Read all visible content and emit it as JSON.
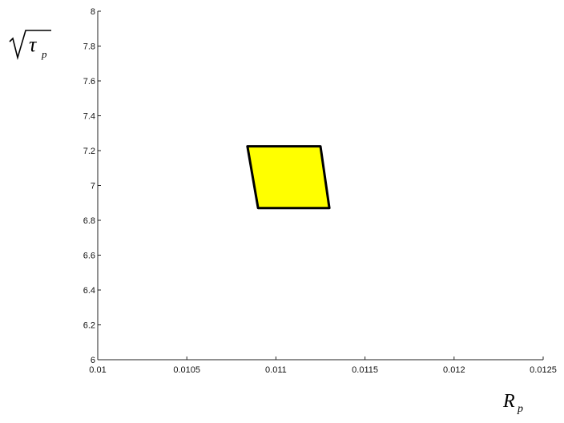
{
  "chart_data": {
    "type": "area",
    "title": "",
    "xlabel": "R",
    "xlabel_sub": "p",
    "ylabel": "τ",
    "ylabel_sub": "p",
    "xlim": [
      0.01,
      0.0125
    ],
    "ylim": [
      6,
      8
    ],
    "x_ticks": [
      "0.01",
      "0.0105",
      "0.011",
      "0.0115",
      "0.012",
      "0.0125"
    ],
    "y_ticks": [
      "6",
      "6.2",
      "6.4",
      "6.6",
      "6.8",
      "7",
      "7.2",
      "7.4",
      "7.6",
      "7.8",
      "8"
    ],
    "grid": false,
    "fill_color": "#ffff00",
    "edge_color": "#000000",
    "region": [
      {
        "x": 0.01084,
        "y": 7.225
      },
      {
        "x": 0.01125,
        "y": 7.225
      },
      {
        "x": 0.0113,
        "y": 6.87
      },
      {
        "x": 0.0109,
        "y": 6.87
      }
    ]
  }
}
